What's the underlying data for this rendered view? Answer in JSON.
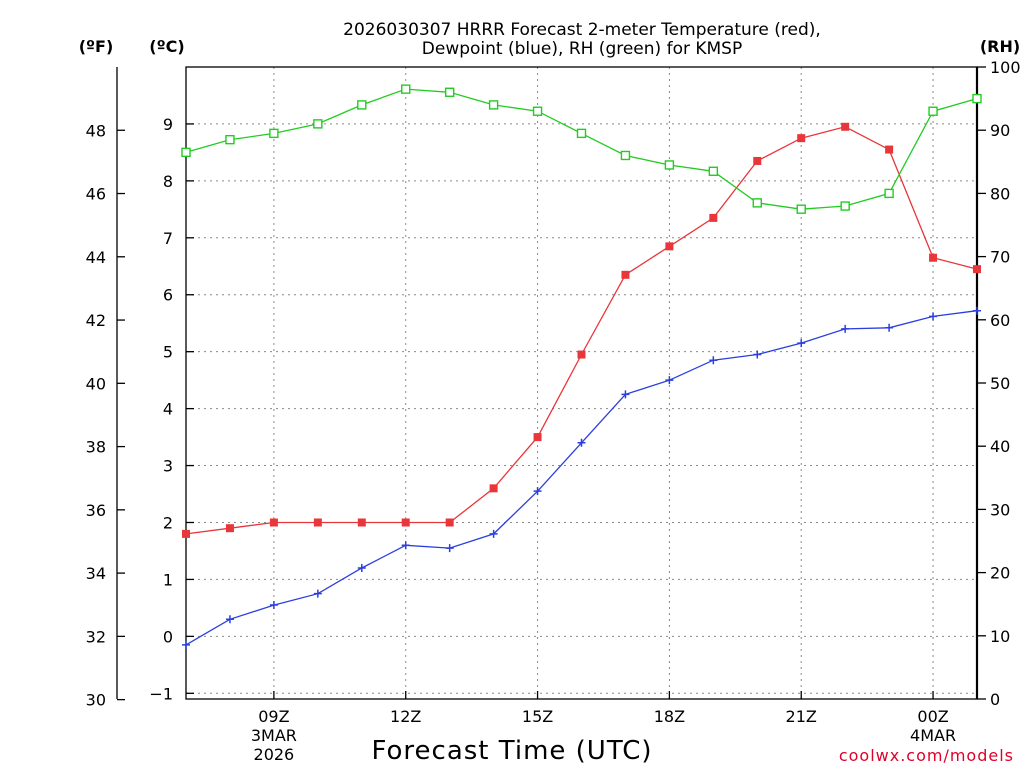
{
  "chart_data": {
    "type": "line",
    "title_line1": "2026030307 HRRR Forecast 2-meter Temperature (red),",
    "title_line2": "Dewpoint (blue), RH (green) for KMSP",
    "xlabel": "Forecast Time (UTC)",
    "credit": "coolwx.com/models",
    "unit_f": "(ºF)",
    "unit_c": "(ºC)",
    "unit_rh": "(RH)",
    "x_hours": [
      7,
      8,
      9,
      10,
      11,
      12,
      13,
      14,
      15,
      16,
      17,
      18,
      19,
      20,
      21,
      22,
      23,
      24,
      25
    ],
    "xlim": [
      7,
      25
    ],
    "x_ticks": [
      {
        "hour": 9,
        "label": "09Z",
        "date_line1": "3MAR",
        "date_line2": "2026"
      },
      {
        "hour": 12,
        "label": "12Z",
        "date_line1": "",
        "date_line2": ""
      },
      {
        "hour": 15,
        "label": "15Z",
        "date_line1": "",
        "date_line2": ""
      },
      {
        "hour": 18,
        "label": "18Z",
        "date_line1": "",
        "date_line2": ""
      },
      {
        "hour": 21,
        "label": "21Z",
        "date_line1": "",
        "date_line2": ""
      },
      {
        "hour": 24,
        "label": "00Z",
        "date_line1": "4MAR",
        "date_line2": ""
      }
    ],
    "ylim_c": [
      -1.1,
      10.0
    ],
    "ylim_f": [
      30,
      50
    ],
    "ylim_rh": [
      0,
      100
    ],
    "yticks_c": [
      -1,
      0,
      1,
      2,
      3,
      4,
      5,
      6,
      7,
      8,
      9
    ],
    "yticks_c_labels": [
      "−1",
      "0",
      "1",
      "2",
      "3",
      "4",
      "5",
      "6",
      "7",
      "8",
      "9"
    ],
    "yticks_f": [
      30,
      32,
      34,
      36,
      38,
      40,
      42,
      44,
      46,
      48
    ],
    "yticks_rh": [
      0,
      10,
      20,
      30,
      40,
      50,
      60,
      70,
      80,
      90,
      100
    ],
    "series": [
      {
        "name": "Temperature",
        "unit": "C",
        "color": "#e8363a",
        "marker": "filled-square",
        "values": [
          1.8,
          1.9,
          2.0,
          2.0,
          2.0,
          2.0,
          2.0,
          2.6,
          3.5,
          4.95,
          6.35,
          6.85,
          7.35,
          8.35,
          8.75,
          8.95,
          8.55,
          6.65,
          6.45
        ]
      },
      {
        "name": "Dewpoint",
        "unit": "C",
        "color": "#2a3fe0",
        "marker": "plus",
        "values": [
          -0.15,
          0.3,
          0.55,
          0.75,
          1.2,
          1.6,
          1.55,
          1.8,
          2.55,
          3.4,
          4.25,
          4.5,
          4.85,
          4.95,
          5.15,
          5.4,
          5.42,
          5.62,
          5.72
        ]
      },
      {
        "name": "RH",
        "unit": "%",
        "color": "#22cc22",
        "marker": "open-square",
        "values": [
          86.5,
          88.5,
          89.5,
          91,
          94,
          96.5,
          96,
          94,
          93,
          89.5,
          86,
          84.5,
          83.5,
          78.5,
          77.5,
          78,
          80,
          93,
          95
        ]
      }
    ]
  }
}
